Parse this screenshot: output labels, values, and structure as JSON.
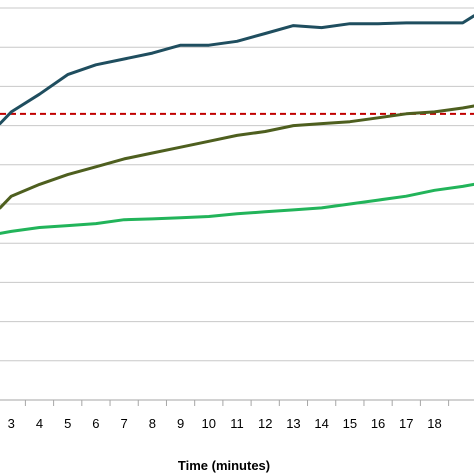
{
  "chart_data": {
    "type": "line",
    "xlabel": "Time (minutes)",
    "ylabel": "",
    "x_ticks": [
      3,
      4,
      5,
      6,
      7,
      8,
      9,
      10,
      11,
      12,
      13,
      14,
      15,
      16,
      17,
      18
    ],
    "ylim": [
      0,
      10
    ],
    "xlim": [
      2.6,
      19.4
    ],
    "grid": true,
    "legend": "none",
    "reference_line": {
      "y": 7.3,
      "color": "#c00000",
      "style": "dashed"
    },
    "series": [
      {
        "color": "#1f4e5f",
        "x": [
          2.6,
          3,
          4,
          5,
          6,
          7,
          8,
          9,
          10,
          11,
          12,
          13,
          14,
          15,
          16,
          17,
          18,
          19,
          19.4
        ],
        "values": [
          7.05,
          7.35,
          7.8,
          8.3,
          8.55,
          8.7,
          8.85,
          9.05,
          9.05,
          9.15,
          9.35,
          9.55,
          9.5,
          9.6,
          9.6,
          9.62,
          9.62,
          9.62,
          9.8
        ]
      },
      {
        "color": "#4e5f1f",
        "x": [
          2.6,
          3,
          4,
          5,
          6,
          7,
          8,
          9,
          10,
          11,
          12,
          13,
          14,
          15,
          16,
          17,
          18,
          19,
          19.4
        ],
        "values": [
          4.9,
          5.2,
          5.5,
          5.75,
          5.95,
          6.15,
          6.3,
          6.45,
          6.6,
          6.75,
          6.85,
          7.0,
          7.05,
          7.1,
          7.2,
          7.3,
          7.35,
          7.45,
          7.5
        ]
      },
      {
        "color": "#22b45a",
        "x": [
          2.6,
          3,
          4,
          5,
          6,
          7,
          8,
          9,
          10,
          11,
          12,
          13,
          14,
          15,
          16,
          17,
          18,
          19,
          19.4
        ],
        "values": [
          4.25,
          4.3,
          4.4,
          4.45,
          4.5,
          4.6,
          4.62,
          4.65,
          4.68,
          4.75,
          4.8,
          4.85,
          4.9,
          5.0,
          5.1,
          5.2,
          5.35,
          5.45,
          5.5
        ]
      }
    ]
  }
}
